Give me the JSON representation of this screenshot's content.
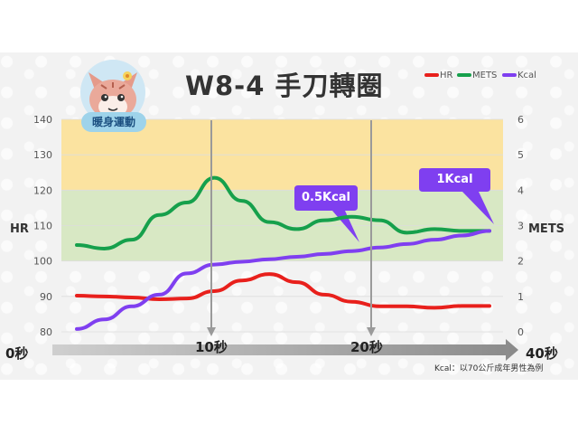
{
  "header": {
    "title": "W8-4  手刀轉圈",
    "badge_label": "暖身運動"
  },
  "legend": {
    "items": [
      {
        "name": "HR",
        "color": "#e8201c"
      },
      {
        "name": "METS",
        "color": "#16a04c"
      },
      {
        "name": "Kcal",
        "color": "#7f3ff0"
      }
    ]
  },
  "timeline": {
    "labels": [
      "0秒",
      "10秒",
      "20秒",
      "40秒"
    ]
  },
  "callouts": {
    "half": "0.5Kcal",
    "one": "1Kcal"
  },
  "footnote": "Kcal：以70公斤成年男性為例",
  "chart_data": {
    "type": "line",
    "x": [
      0,
      2,
      4,
      6,
      8,
      10,
      12,
      14,
      16,
      18,
      20,
      22,
      24,
      26,
      28,
      30
    ],
    "left_axis": {
      "label": "HR",
      "ticks": [
        80,
        90,
        100,
        110,
        120,
        130,
        140
      ],
      "range": [
        80,
        140
      ]
    },
    "right_axis": {
      "label": "METS",
      "ticks": [
        0,
        1,
        2,
        3,
        4,
        5,
        6
      ],
      "range": [
        0,
        6
      ]
    },
    "bands": [
      {
        "from": 120,
        "to": 140,
        "color": "#fbe3a0"
      },
      {
        "from": 100,
        "to": 120,
        "color": "#d8e8c4"
      }
    ],
    "markers": [
      {
        "x": 10,
        "label": "10秒"
      },
      {
        "x": 20,
        "label": "20秒"
      }
    ],
    "series": [
      {
        "name": "HR",
        "axis": "left",
        "color": "#e8201c",
        "values": [
          90.2,
          90.0,
          89.7,
          89.2,
          89.4,
          91.5,
          94.5,
          96.3,
          94.0,
          90.5,
          88.5,
          87.2,
          87.2,
          86.8,
          87.3,
          87.3
        ]
      },
      {
        "name": "METS",
        "axis": "right",
        "color": "#16a04c",
        "values": [
          2.45,
          2.35,
          2.6,
          3.3,
          3.65,
          4.35,
          3.7,
          3.1,
          2.9,
          3.15,
          3.25,
          3.15,
          2.8,
          2.9,
          2.85,
          2.85
        ]
      },
      {
        "name": "Kcal",
        "axis": "right",
        "color": "#7f3ff0",
        "values": [
          0.08,
          0.35,
          0.72,
          1.05,
          1.65,
          1.9,
          1.98,
          2.05,
          2.12,
          2.2,
          2.28,
          2.38,
          2.48,
          2.6,
          2.72,
          2.85
        ]
      }
    ]
  }
}
